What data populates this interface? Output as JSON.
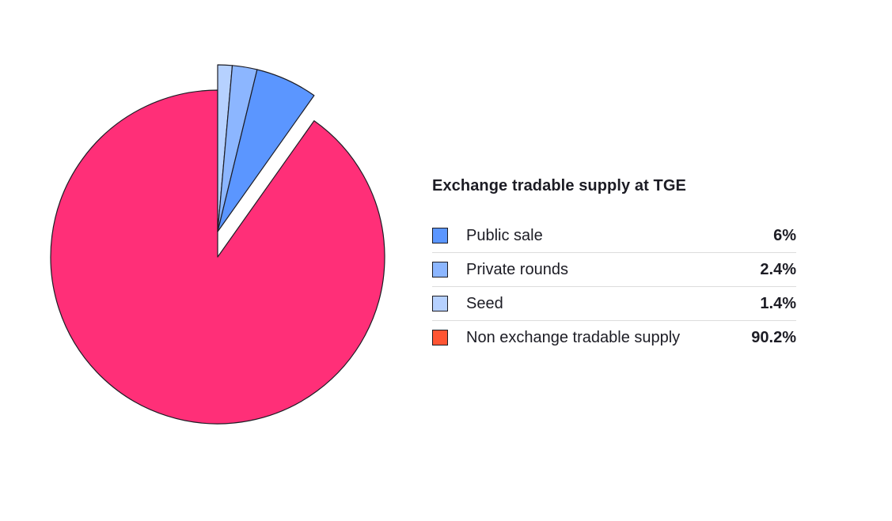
{
  "chart_data": {
    "type": "pie",
    "title": "Exchange tradable supply at TGE",
    "series": [
      {
        "name": "Public sale",
        "value": 6,
        "label": "6%",
        "color": "#5b96ff",
        "exploded": true
      },
      {
        "name": "Private rounds",
        "value": 2.4,
        "label": "2.4%",
        "color": "#8cb6ff",
        "exploded": true
      },
      {
        "name": "Seed",
        "value": 1.4,
        "label": "1.4%",
        "color": "#b6d1ff",
        "exploded": true
      },
      {
        "name": "Non exchange tradable supply",
        "value": 90.2,
        "label": "90.2%",
        "color": "#ff2f78",
        "legend_color": "#ff5533",
        "exploded": false
      }
    ],
    "legend_position": "right"
  }
}
